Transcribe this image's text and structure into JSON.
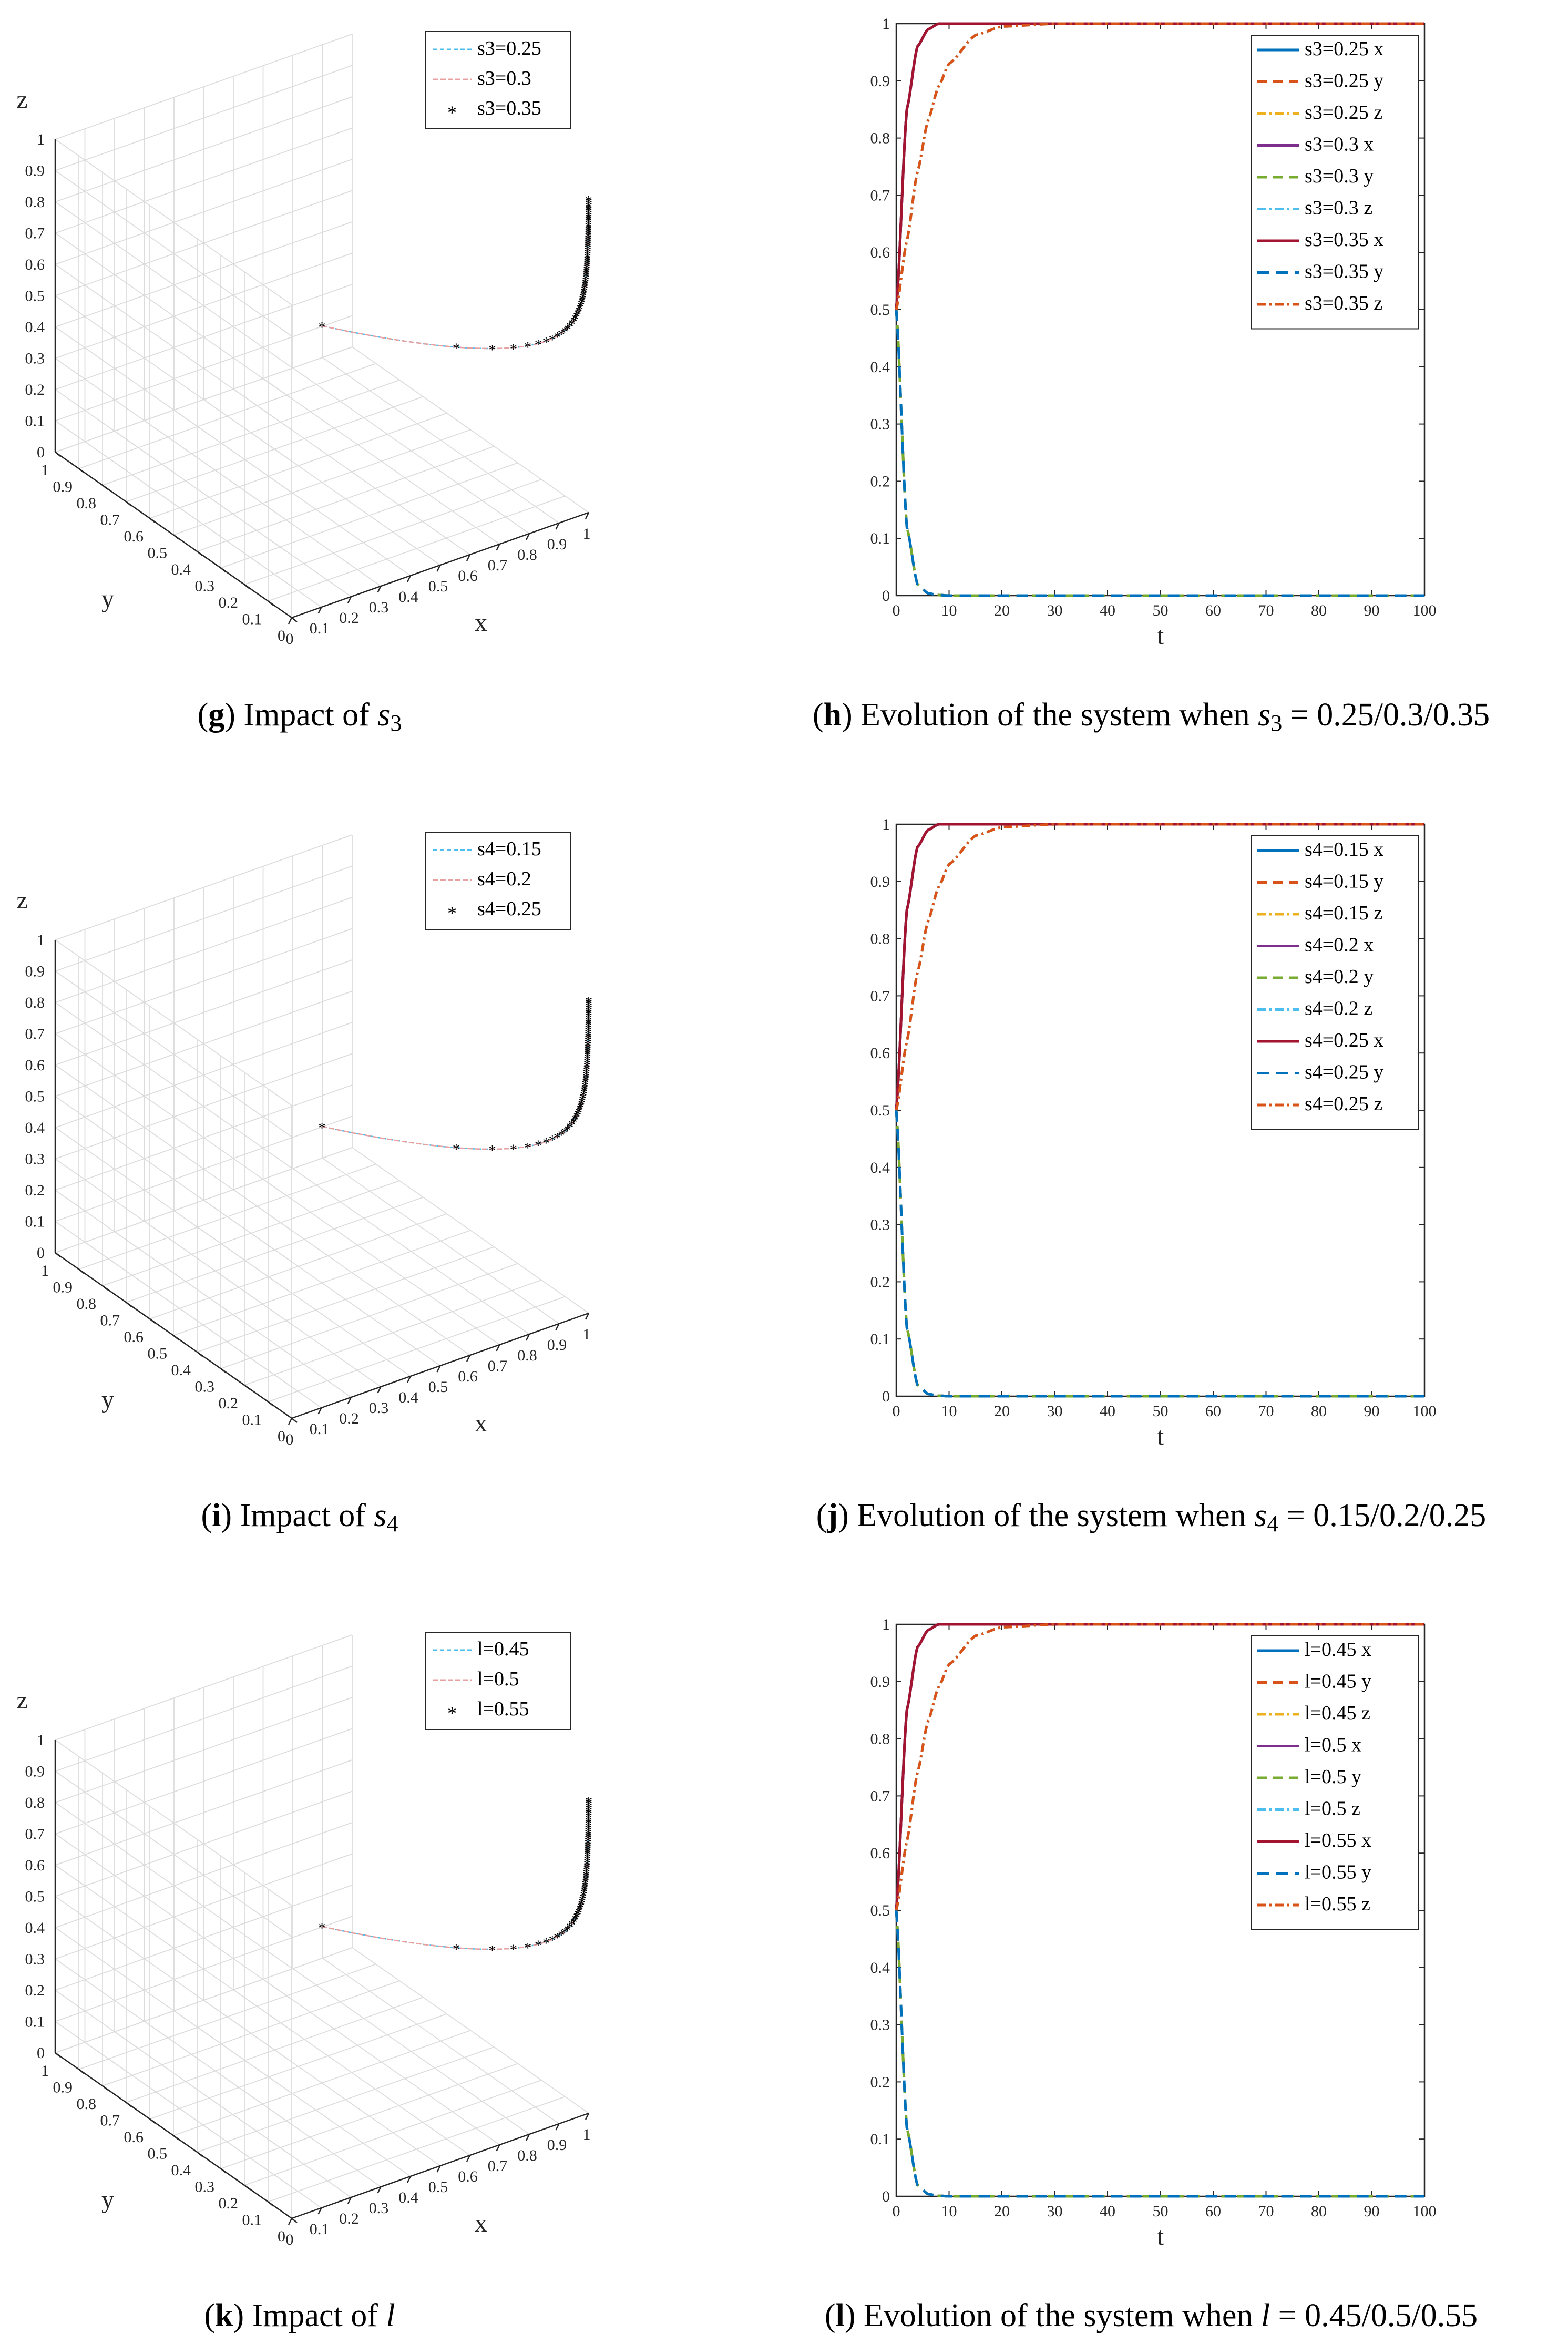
{
  "colors": {
    "blue": "#0072BD",
    "orange": "#D95319",
    "yellow": "#EDB120",
    "purple": "#7E2F8E",
    "green": "#77AC30",
    "cyan": "#4DBEEE",
    "darkred": "#A2142F",
    "axis": "#262626",
    "grid": "#DCDCDC",
    "marker": "#F5C04A"
  },
  "chart_data": [
    {
      "id": "g",
      "type": "line3d",
      "caption": {
        "letter": "g",
        "text_pre": ") Impact of ",
        "sym": "s",
        "sub": "3",
        "text_post": ""
      },
      "xlabel": "x",
      "ylabel": "y",
      "zlabel": "z",
      "xticks": [
        "0",
        "0.1",
        "0.2",
        "0.3",
        "0.4",
        "0.5",
        "0.6",
        "0.7",
        "0.8",
        "0.9",
        "1"
      ],
      "yticks": [
        "0",
        "0.1",
        "0.2",
        "0.3",
        "0.4",
        "0.5",
        "0.6",
        "0.7",
        "0.8",
        "0.9",
        "1"
      ],
      "zticks": [
        "0",
        "0.1",
        "0.2",
        "0.3",
        "0.4",
        "0.5",
        "0.6",
        "0.7",
        "0.8",
        "0.9",
        "1"
      ],
      "legend": [
        "s3=0.25",
        "s3=0.3",
        "s3=0.35"
      ],
      "xlim": [
        0,
        1
      ],
      "ylim": [
        0,
        1
      ],
      "zlim": [
        0,
        1
      ]
    },
    {
      "id": "h",
      "type": "line",
      "caption": {
        "letter": "h",
        "text_pre": ") Evolution of the system when ",
        "sym": "s",
        "sub": "3",
        "text_post": " = 0.25/0.3/0.35"
      },
      "xlabel": "t",
      "ylabel": "",
      "xlim": [
        0,
        100
      ],
      "ylim": [
        0,
        1
      ],
      "xticks": [
        "0",
        "10",
        "20",
        "30",
        "40",
        "50",
        "60",
        "70",
        "80",
        "90",
        "100"
      ],
      "yticks": [
        "0",
        "0.1",
        "0.2",
        "0.3",
        "0.4",
        "0.5",
        "0.6",
        "0.7",
        "0.8",
        "0.9",
        "1"
      ],
      "x": [
        0,
        2,
        4,
        6,
        8,
        10,
        15,
        20,
        30,
        40,
        50,
        60,
        70,
        80,
        90,
        100
      ],
      "series": [
        {
          "name": "s3=0.25 x",
          "values": [
            0.5,
            0.85,
            0.96,
            0.99,
            1,
            1,
            1,
            1,
            1,
            1,
            1,
            1,
            1,
            1,
            1,
            1
          ]
        },
        {
          "name": "s3=0.25 y",
          "values": [
            0.5,
            0.12,
            0.02,
            0.004,
            0.001,
            0,
            0,
            0,
            0,
            0,
            0,
            0,
            0,
            0,
            0,
            0
          ]
        },
        {
          "name": "s3=0.25 z",
          "values": [
            0.5,
            0.62,
            0.74,
            0.83,
            0.89,
            0.93,
            0.98,
            0.995,
            1,
            1,
            1,
            1,
            1,
            1,
            1,
            1
          ]
        },
        {
          "name": "s3=0.3 x",
          "values": [
            0.5,
            0.85,
            0.96,
            0.99,
            1,
            1,
            1,
            1,
            1,
            1,
            1,
            1,
            1,
            1,
            1,
            1
          ]
        },
        {
          "name": "s3=0.3 y",
          "values": [
            0.5,
            0.12,
            0.02,
            0.004,
            0.001,
            0,
            0,
            0,
            0,
            0,
            0,
            0,
            0,
            0,
            0,
            0
          ]
        },
        {
          "name": "s3=0.3 z",
          "values": [
            0.5,
            0.62,
            0.74,
            0.83,
            0.89,
            0.93,
            0.98,
            0.995,
            1,
            1,
            1,
            1,
            1,
            1,
            1,
            1
          ]
        },
        {
          "name": "s3=0.35 x",
          "values": [
            0.5,
            0.85,
            0.96,
            0.99,
            1,
            1,
            1,
            1,
            1,
            1,
            1,
            1,
            1,
            1,
            1,
            1
          ]
        },
        {
          "name": "s3=0.35 y",
          "values": [
            0.5,
            0.12,
            0.02,
            0.004,
            0.001,
            0,
            0,
            0,
            0,
            0,
            0,
            0,
            0,
            0,
            0,
            0
          ]
        },
        {
          "name": "s3=0.35 z",
          "values": [
            0.5,
            0.62,
            0.74,
            0.83,
            0.89,
            0.93,
            0.98,
            0.995,
            1,
            1,
            1,
            1,
            1,
            1,
            1,
            1
          ]
        }
      ]
    },
    {
      "id": "i",
      "type": "line3d",
      "caption": {
        "letter": "i",
        "text_pre": ") Impact of ",
        "sym": "s",
        "sub": "4",
        "text_post": ""
      },
      "xlabel": "x",
      "ylabel": "y",
      "zlabel": "z",
      "xticks": [
        "0",
        "0.1",
        "0.2",
        "0.3",
        "0.4",
        "0.5",
        "0.6",
        "0.7",
        "0.8",
        "0.9",
        "1"
      ],
      "yticks": [
        "0",
        "0.1",
        "0.2",
        "0.3",
        "0.4",
        "0.5",
        "0.6",
        "0.7",
        "0.8",
        "0.9",
        "1"
      ],
      "zticks": [
        "0",
        "0.1",
        "0.2",
        "0.3",
        "0.4",
        "0.5",
        "0.6",
        "0.7",
        "0.8",
        "0.9",
        "1"
      ],
      "legend": [
        "s4=0.15",
        "s4=0.2",
        "s4=0.25"
      ],
      "xlim": [
        0,
        1
      ],
      "ylim": [
        0,
        1
      ],
      "zlim": [
        0,
        1
      ]
    },
    {
      "id": "j",
      "type": "line",
      "caption": {
        "letter": "j",
        "text_pre": ") Evolution of the system when ",
        "sym": "s",
        "sub": "4",
        "text_post": " = 0.15/0.2/0.25"
      },
      "xlabel": "t",
      "ylabel": "",
      "xlim": [
        0,
        100
      ],
      "ylim": [
        0,
        1
      ],
      "xticks": [
        "0",
        "10",
        "20",
        "30",
        "40",
        "50",
        "60",
        "70",
        "80",
        "90",
        "100"
      ],
      "yticks": [
        "0",
        "0.1",
        "0.2",
        "0.3",
        "0.4",
        "0.5",
        "0.6",
        "0.7",
        "0.8",
        "0.9",
        "1"
      ],
      "x": [
        0,
        2,
        4,
        6,
        8,
        10,
        15,
        20,
        30,
        40,
        50,
        60,
        70,
        80,
        90,
        100
      ],
      "series": [
        {
          "name": "s4=0.15 x",
          "values": [
            0.5,
            0.85,
            0.96,
            0.99,
            1,
            1,
            1,
            1,
            1,
            1,
            1,
            1,
            1,
            1,
            1,
            1
          ]
        },
        {
          "name": "s4=0.15 y",
          "values": [
            0.5,
            0.12,
            0.02,
            0.004,
            0.001,
            0,
            0,
            0,
            0,
            0,
            0,
            0,
            0,
            0,
            0,
            0
          ]
        },
        {
          "name": "s4=0.15 z",
          "values": [
            0.5,
            0.62,
            0.74,
            0.83,
            0.89,
            0.93,
            0.98,
            0.995,
            1,
            1,
            1,
            1,
            1,
            1,
            1,
            1
          ]
        },
        {
          "name": "s4=0.2 x",
          "values": [
            0.5,
            0.85,
            0.96,
            0.99,
            1,
            1,
            1,
            1,
            1,
            1,
            1,
            1,
            1,
            1,
            1,
            1
          ]
        },
        {
          "name": "s4=0.2 y",
          "values": [
            0.5,
            0.12,
            0.02,
            0.004,
            0.001,
            0,
            0,
            0,
            0,
            0,
            0,
            0,
            0,
            0,
            0,
            0
          ]
        },
        {
          "name": "s4=0.2 z",
          "values": [
            0.5,
            0.62,
            0.74,
            0.83,
            0.89,
            0.93,
            0.98,
            0.995,
            1,
            1,
            1,
            1,
            1,
            1,
            1,
            1
          ]
        },
        {
          "name": "s4=0.25 x",
          "values": [
            0.5,
            0.85,
            0.96,
            0.99,
            1,
            1,
            1,
            1,
            1,
            1,
            1,
            1,
            1,
            1,
            1,
            1
          ]
        },
        {
          "name": "s4=0.25 y",
          "values": [
            0.5,
            0.12,
            0.02,
            0.004,
            0.001,
            0,
            0,
            0,
            0,
            0,
            0,
            0,
            0,
            0,
            0,
            0
          ]
        },
        {
          "name": "s4=0.25 z",
          "values": [
            0.5,
            0.62,
            0.74,
            0.83,
            0.89,
            0.93,
            0.98,
            0.995,
            1,
            1,
            1,
            1,
            1,
            1,
            1,
            1
          ]
        }
      ]
    },
    {
      "id": "k",
      "type": "line3d",
      "caption": {
        "letter": "k",
        "text_pre": ") Impact of ",
        "sym": "l",
        "sub": "",
        "text_post": ""
      },
      "xlabel": "x",
      "ylabel": "y",
      "zlabel": "z",
      "xticks": [
        "0",
        "0.1",
        "0.2",
        "0.3",
        "0.4",
        "0.5",
        "0.6",
        "0.7",
        "0.8",
        "0.9",
        "1"
      ],
      "yticks": [
        "0",
        "0.1",
        "0.2",
        "0.3",
        "0.4",
        "0.5",
        "0.6",
        "0.7",
        "0.8",
        "0.9",
        "1"
      ],
      "zticks": [
        "0",
        "0.1",
        "0.2",
        "0.3",
        "0.4",
        "0.5",
        "0.6",
        "0.7",
        "0.8",
        "0.9",
        "1"
      ],
      "legend": [
        "l=0.45",
        "l=0.5",
        "l=0.55"
      ],
      "xlim": [
        0,
        1
      ],
      "ylim": [
        0,
        1
      ],
      "zlim": [
        0,
        1
      ]
    },
    {
      "id": "l",
      "type": "line",
      "caption": {
        "letter": "l",
        "text_pre": ") Evolution of the system when ",
        "sym": "l",
        "sub": "",
        "text_post": " = 0.45/0.5/0.55"
      },
      "xlabel": "t",
      "ylabel": "",
      "xlim": [
        0,
        100
      ],
      "ylim": [
        0,
        1
      ],
      "xticks": [
        "0",
        "10",
        "20",
        "30",
        "40",
        "50",
        "60",
        "70",
        "80",
        "90",
        "100"
      ],
      "yticks": [
        "0",
        "0.1",
        "0.2",
        "0.3",
        "0.4",
        "0.5",
        "0.6",
        "0.7",
        "0.8",
        "0.9",
        "1"
      ],
      "x": [
        0,
        2,
        4,
        6,
        8,
        10,
        15,
        20,
        30,
        40,
        50,
        60,
        70,
        80,
        90,
        100
      ],
      "series": [
        {
          "name": "l=0.45 x",
          "values": [
            0.5,
            0.85,
            0.96,
            0.99,
            1,
            1,
            1,
            1,
            1,
            1,
            1,
            1,
            1,
            1,
            1,
            1
          ]
        },
        {
          "name": "l=0.45 y",
          "values": [
            0.5,
            0.12,
            0.02,
            0.004,
            0.001,
            0,
            0,
            0,
            0,
            0,
            0,
            0,
            0,
            0,
            0,
            0
          ]
        },
        {
          "name": "l=0.45 z",
          "values": [
            0.5,
            0.62,
            0.74,
            0.83,
            0.89,
            0.93,
            0.98,
            0.995,
            1,
            1,
            1,
            1,
            1,
            1,
            1,
            1
          ]
        },
        {
          "name": "l=0.5 x",
          "values": [
            0.5,
            0.85,
            0.96,
            0.99,
            1,
            1,
            1,
            1,
            1,
            1,
            1,
            1,
            1,
            1,
            1,
            1
          ]
        },
        {
          "name": "l=0.5 y",
          "values": [
            0.5,
            0.12,
            0.02,
            0.004,
            0.001,
            0,
            0,
            0,
            0,
            0,
            0,
            0,
            0,
            0,
            0,
            0
          ]
        },
        {
          "name": "l=0.5 z",
          "values": [
            0.5,
            0.62,
            0.74,
            0.83,
            0.89,
            0.93,
            0.98,
            0.995,
            1,
            1,
            1,
            1,
            1,
            1,
            1,
            1
          ]
        },
        {
          "name": "l=0.55 x",
          "values": [
            0.5,
            0.85,
            0.96,
            0.99,
            1,
            1,
            1,
            1,
            1,
            1,
            1,
            1,
            1,
            1,
            1,
            1
          ]
        },
        {
          "name": "l=0.55 y",
          "values": [
            0.5,
            0.12,
            0.02,
            0.004,
            0.001,
            0,
            0,
            0,
            0,
            0,
            0,
            0,
            0,
            0,
            0,
            0
          ]
        },
        {
          "name": "l=0.55 z",
          "values": [
            0.5,
            0.62,
            0.74,
            0.83,
            0.89,
            0.93,
            0.98,
            0.995,
            1,
            1,
            1,
            1,
            1,
            1,
            1,
            1
          ]
        }
      ]
    }
  ]
}
